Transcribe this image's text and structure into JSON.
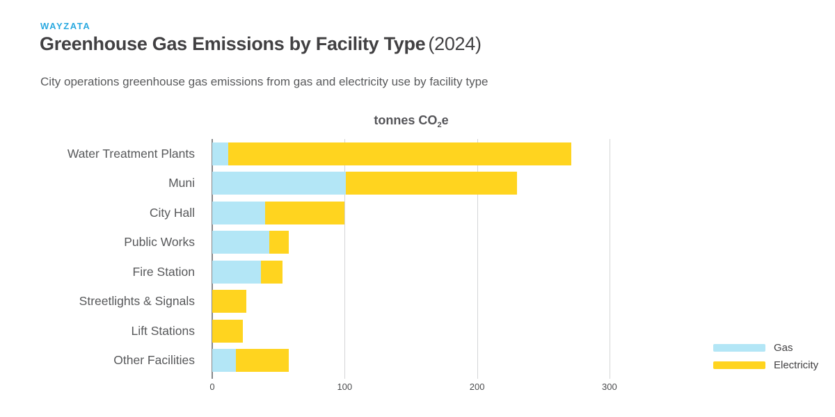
{
  "brand": "WAYZATA",
  "header": {
    "title": "Greenhouse Gas Emissions by Facility Type",
    "title_suffix": "(2024)",
    "subtitle": "City operations greenhouse gas emissions from gas and electricity use by facility type"
  },
  "chart_data": {
    "type": "bar",
    "orientation": "horizontal",
    "stacked": true,
    "axis_title": {
      "prefix": "tonnes CO",
      "sub": "2",
      "suffix": "e"
    },
    "categories": [
      "Water Treatment Plants",
      "Muni",
      "City Hall",
      "Public Works",
      "Fire Station",
      "Streetlights & Signals",
      "Lift Stations",
      "Other Facilities"
    ],
    "series": [
      {
        "name": "Gas",
        "color": "#B3E6F6",
        "values": [
          12,
          101,
          40,
          43,
          37,
          0,
          0,
          18
        ]
      },
      {
        "name": "Electricity",
        "color": "#FFD41F",
        "values": [
          259,
          129,
          60,
          15,
          16,
          26,
          23,
          40
        ]
      }
    ],
    "x_ticks": [
      0,
      100,
      200,
      300
    ],
    "xlim": [
      0,
      402
    ],
    "grid": "vertical-only",
    "legend_position": "bottom-right",
    "colors": {
      "brand_blue": "#2AA9E0",
      "title_gray": "#414042",
      "subtitle_gray": "#58595B",
      "gridline": "#D4D5D6",
      "axis_line": "#85878A"
    }
  }
}
